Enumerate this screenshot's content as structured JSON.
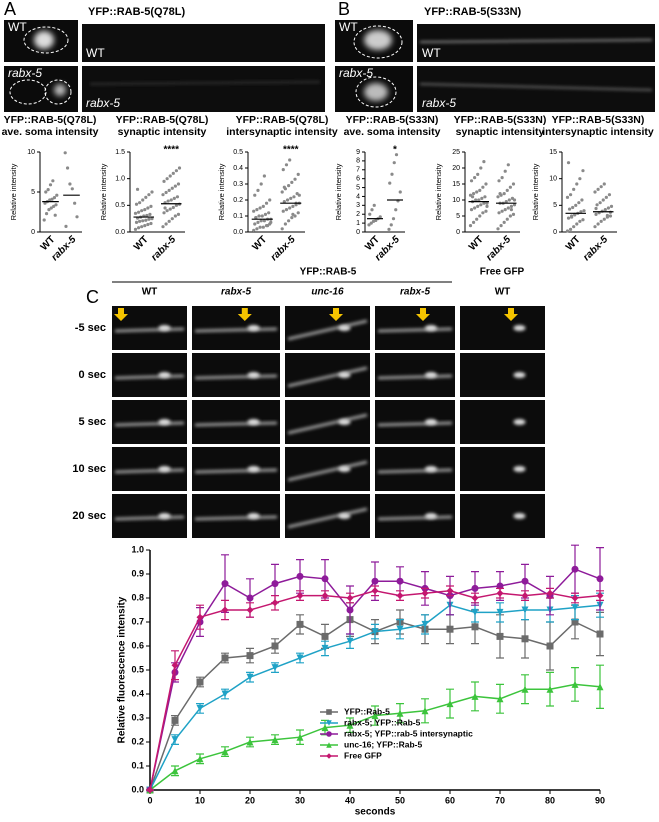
{
  "panels": {
    "A": {
      "label": "A",
      "construct": "YFP::RAB-5(Q78L)",
      "image_labels": [
        "WT",
        "WT",
        "rabx-5",
        "rabx-5"
      ]
    },
    "B": {
      "label": "B",
      "construct": "YFP::RAB-5(S33N)",
      "image_labels": [
        "WT",
        "WT",
        "rabx-5",
        "rabx-5"
      ]
    },
    "C": {
      "label": "C",
      "header": "YFP::RAB-5",
      "free_gfp": "Free GFP",
      "columns": [
        "WT",
        "rabx-5",
        "unc-16",
        "rabx-5",
        "WT"
      ],
      "rows": [
        "-5 sec",
        "0 sec",
        "5 sec",
        "10 sec",
        "20 sec"
      ]
    }
  },
  "chart_data": [
    {
      "type": "strip",
      "title": "YFP::RAB-5(Q78L)",
      "subtitle": "ave. soma intensity",
      "ylabel": "Relative intensity",
      "categories": [
        "WT",
        "rabx-5"
      ],
      "significance": [
        null,
        null
      ],
      "values": [
        [
          1.5,
          2.3,
          2.8,
          3.0,
          3.2,
          3.4,
          3.6,
          3.8,
          4.0,
          4.1,
          4.3,
          4.6,
          5.0,
          5.3,
          5.9,
          6.4,
          2.1
        ],
        [
          9.9,
          8.0,
          6.0,
          5.4,
          3.6,
          1.9,
          0.7
        ]
      ],
      "means": [
        3.8,
        4.6
      ],
      "ylim": [
        0,
        10
      ],
      "yticks": [
        0,
        5,
        10
      ],
      "color": "#8a8a8a"
    },
    {
      "type": "strip",
      "title": "YFP::RAB-5(Q78L)",
      "subtitle": "synaptic intensity",
      "ylabel": "Relative intensity",
      "categories": [
        "WT",
        "rabx-5"
      ],
      "significance": [
        null,
        "****"
      ],
      "values": [
        [
          0.05,
          0.08,
          0.1,
          0.12,
          0.14,
          0.16,
          0.18,
          0.2,
          0.21,
          0.22,
          0.24,
          0.25,
          0.26,
          0.28,
          0.3,
          0.31,
          0.33,
          0.35,
          0.37,
          0.4,
          0.42,
          0.45,
          0.48,
          0.52,
          0.55,
          0.6,
          0.65,
          0.7,
          0.75,
          0.8
        ],
        [
          0.1,
          0.15,
          0.2,
          0.25,
          0.3,
          0.33,
          0.36,
          0.4,
          0.43,
          0.46,
          0.5,
          0.52,
          0.55,
          0.58,
          0.6,
          0.63,
          0.66,
          0.7,
          0.74,
          0.78,
          0.82,
          0.86,
          0.9,
          0.95,
          1.0,
          1.05,
          1.1,
          1.15,
          1.2,
          0.45
        ]
      ],
      "means": [
        0.28,
        0.53
      ],
      "ylim": [
        0,
        1.5
      ],
      "yticks": [
        {
          "value": 0,
          "label": "0.0"
        },
        0.5,
        {
          "value": 1,
          "label": "1.0"
        },
        1.5
      ],
      "color": "#8a8a8a"
    },
    {
      "type": "strip",
      "title": "YFP::RAB-5(Q78L)",
      "subtitle": "intersynaptic intensity",
      "ylabel": "Relative intensity",
      "categories": [
        "WT",
        "rabx-5"
      ],
      "significance": [
        null,
        "****"
      ],
      "values": [
        [
          0.01,
          0.02,
          0.03,
          0.03,
          0.04,
          0.05,
          0.05,
          0.06,
          0.07,
          0.07,
          0.08,
          0.08,
          0.09,
          0.1,
          0.1,
          0.11,
          0.12,
          0.13,
          0.14,
          0.15,
          0.16,
          0.18,
          0.2,
          0.23,
          0.26,
          0.3,
          0.35,
          0.04,
          0.06,
          0.09
        ],
        [
          0.02,
          0.05,
          0.07,
          0.09,
          0.1,
          0.12,
          0.13,
          0.14,
          0.15,
          0.16,
          0.17,
          0.18,
          0.19,
          0.2,
          0.21,
          0.22,
          0.24,
          0.25,
          0.27,
          0.29,
          0.31,
          0.33,
          0.36,
          0.39,
          0.42,
          0.45,
          0.11,
          0.18,
          0.23,
          0.28
        ]
      ],
      "means": [
        0.08,
        0.18
      ],
      "ylim": [
        0,
        0.5
      ],
      "yticks": [
        {
          "value": 0,
          "label": "0.0"
        },
        0.1,
        0.2,
        0.3,
        0.4,
        0.5
      ],
      "color": "#8a8a8a"
    },
    {
      "type": "strip",
      "title": "YFP::RAB-5(S33N)",
      "subtitle": "ave. soma intensity",
      "ylabel": "Relative intensity",
      "categories": [
        "WT",
        "rabx-5"
      ],
      "significance": [
        null,
        "*"
      ],
      "values": [
        [
          0.8,
          1.0,
          1.2,
          1.3,
          1.5,
          1.7,
          2.0,
          2.5,
          3.0
        ],
        [
          0.3,
          0.8,
          1.5,
          2.5,
          3.5,
          4.5,
          5.5,
          6.5,
          7.8,
          8.7
        ]
      ],
      "means": [
        1.5,
        3.6
      ],
      "ylim": [
        0,
        9
      ],
      "yticks": [
        0,
        1,
        2,
        3,
        4,
        5,
        6,
        7,
        8,
        9
      ],
      "color": "#8a8a8a"
    },
    {
      "type": "strip",
      "title": "YFP::RAB-5(S33N)",
      "subtitle": "synaptic intensity",
      "ylabel": "Relative intensity",
      "categories": [
        "WT",
        "rabx-5"
      ],
      "significance": [
        null,
        null
      ],
      "values": [
        [
          2,
          3,
          4,
          5,
          6,
          6.5,
          7,
          7.5,
          8,
          8.5,
          9,
          9,
          9.5,
          10,
          10,
          10.5,
          11,
          11.5,
          12,
          12.5,
          13,
          14,
          15,
          16,
          17,
          18,
          20,
          22,
          8,
          11
        ],
        [
          1,
          2,
          3,
          4,
          5,
          5.5,
          6,
          6.5,
          7,
          7.5,
          8,
          8.5,
          9,
          9,
          9.5,
          10,
          10.5,
          11,
          11.5,
          12,
          13,
          14,
          15,
          16,
          17,
          19,
          21,
          7,
          10,
          12
        ]
      ],
      "means": [
        9.5,
        9.0
      ],
      "ylim": [
        0,
        25
      ],
      "yticks": [
        0,
        5,
        10,
        15,
        20,
        25
      ],
      "color": "#8a8a8a"
    },
    {
      "type": "strip",
      "title": "YFP::RAB-5(S33N)",
      "subtitle": "intersynaptic intensity",
      "ylabel": "Relative intensity",
      "categories": [
        "WT",
        "rabx-5"
      ],
      "significance": [
        null,
        null
      ],
      "values": [
        [
          0.2,
          0.5,
          1,
          1.5,
          2,
          2.3,
          2.6,
          3,
          3.2,
          3.5,
          3.8,
          4,
          4.3,
          4.6,
          5,
          5.5,
          6,
          6.5,
          7,
          8,
          9,
          10,
          11.5,
          13,
          2.8,
          3.3
        ],
        [
          1,
          1.5,
          2,
          2.4,
          2.8,
          3,
          3.3,
          3.6,
          3.9,
          4.2,
          4.5,
          4.8,
          5.1,
          5.5,
          6,
          6.5,
          7,
          7.5,
          8,
          8.5,
          9,
          3.1,
          3.7,
          4.4
        ]
      ],
      "means": [
        3.5,
        3.8
      ],
      "ylim": [
        0,
        15
      ],
      "yticks": [
        0,
        5,
        10,
        15
      ],
      "color": "#8a8a8a"
    },
    {
      "type": "line",
      "xlabel": "seconds",
      "ylabel": "Relative fluorescence intensity",
      "legend": "lower right",
      "x": [
        0,
        5,
        10,
        15,
        20,
        25,
        30,
        35,
        40,
        45,
        50,
        55,
        60,
        65,
        70,
        75,
        80,
        85,
        90
      ],
      "xlim": [
        0,
        90
      ],
      "xticks": [
        0,
        10,
        20,
        30,
        40,
        50,
        60,
        70,
        80,
        90
      ],
      "ylim": [
        0,
        1
      ],
      "yticks": [
        {
          "value": 0,
          "label": "0.0"
        },
        0.1,
        0.2,
        0.3,
        0.4,
        0.5,
        0.6,
        0.7,
        0.8,
        0.9,
        {
          "value": 1,
          "label": "1.0"
        }
      ],
      "series": [
        {
          "name": "YFP::Rab-5",
          "color": "#6b6b6b",
          "marker": "square",
          "values": [
            0,
            0.29,
            0.45,
            0.55,
            0.56,
            0.6,
            0.69,
            0.64,
            0.71,
            0.66,
            0.7,
            0.67,
            0.67,
            0.68,
            0.64,
            0.63,
            0.6,
            0.7,
            0.65
          ],
          "errors": [
            0,
            0.02,
            0.02,
            0.02,
            0.03,
            0.03,
            0.04,
            0.05,
            0.07,
            0.05,
            0.05,
            0.06,
            0.06,
            0.07,
            0.09,
            0.08,
            0.1,
            0.07,
            0.09
          ]
        },
        {
          "name": "rabx-5; YFP::Rab-5",
          "color": "#1fa2c6",
          "marker": "triangle-down",
          "values": [
            0,
            0.21,
            0.34,
            0.4,
            0.47,
            0.51,
            0.55,
            0.59,
            0.62,
            0.66,
            0.67,
            0.69,
            0.77,
            0.74,
            0.74,
            0.75,
            0.75,
            0.76,
            0.77
          ],
          "errors": [
            0,
            0.02,
            0.02,
            0.02,
            0.02,
            0.02,
            0.02,
            0.03,
            0.03,
            0.03,
            0.04,
            0.04,
            0.04,
            0.04,
            0.04,
            0.04,
            0.05,
            0.05,
            0.05
          ]
        },
        {
          "name": "rabx-5; YFP::rab-5 intersynaptic",
          "color": "#8e1b9a",
          "marker": "circle",
          "values": [
            0,
            0.49,
            0.7,
            0.86,
            0.8,
            0.86,
            0.89,
            0.88,
            0.75,
            0.87,
            0.87,
            0.84,
            0.81,
            0.84,
            0.85,
            0.87,
            0.81,
            0.92,
            0.88
          ],
          "errors": [
            0,
            0.04,
            0.06,
            0.12,
            0.08,
            0.08,
            0.07,
            0.08,
            0.1,
            0.08,
            0.06,
            0.07,
            0.08,
            0.07,
            0.06,
            0.07,
            0.08,
            0.1,
            0.13
          ]
        },
        {
          "name": "unc-16; YFP::Rab-5",
          "color": "#3cc43c",
          "marker": "triangle-up",
          "values": [
            0,
            0.08,
            0.13,
            0.16,
            0.2,
            0.21,
            0.22,
            0.26,
            0.27,
            0.31,
            0.32,
            0.33,
            0.36,
            0.39,
            0.38,
            0.42,
            0.42,
            0.44,
            0.43
          ],
          "errors": [
            0,
            0.02,
            0.02,
            0.02,
            0.02,
            0.02,
            0.03,
            0.03,
            0.03,
            0.04,
            0.04,
            0.05,
            0.06,
            0.06,
            0.06,
            0.06,
            0.07,
            0.07,
            0.09
          ]
        },
        {
          "name": "Free GFP",
          "color": "#c4176f",
          "marker": "diamond",
          "values": [
            0,
            0.52,
            0.72,
            0.75,
            0.75,
            0.78,
            0.81,
            0.81,
            0.8,
            0.83,
            0.81,
            0.82,
            0.83,
            0.8,
            0.82,
            0.81,
            0.82,
            0.8,
            0.81
          ],
          "errors": [
            0,
            0.06,
            0.05,
            0.04,
            0.03,
            0.03,
            0.02,
            0.02,
            0.02,
            0.02,
            0.02,
            0.02,
            0.02,
            0.02,
            0.02,
            0.02,
            0.02,
            0.02,
            0.02
          ]
        }
      ]
    }
  ]
}
